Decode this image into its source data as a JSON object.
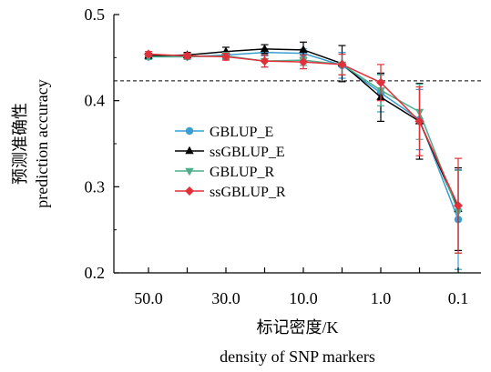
{
  "chart_data": {
    "type": "line",
    "title": "",
    "xlabel": "标记密度/K",
    "xlabel_en": "density of SNP markers",
    "ylabel": "预测准确性",
    "ylabel_en": "prediction accuracy",
    "x_categories": [
      "50.0",
      "",
      "30.0",
      "",
      "10.0",
      "",
      "1.0",
      "",
      "0.1"
    ],
    "ylim": [
      0.2,
      0.5
    ],
    "y_ticks": [
      0.2,
      0.3,
      0.4,
      0.5
    ],
    "y_tick_labels": [
      "0.2",
      "0.3",
      "0.4",
      "0.5"
    ],
    "reference_line": 0.423,
    "grid": false,
    "legend_position": "center-left",
    "series": [
      {
        "name": "GBLUP_E",
        "color": "#3a9ed0",
        "marker": "circle",
        "values": [
          0.451,
          0.451,
          0.453,
          0.456,
          0.455,
          0.441,
          0.409,
          0.378,
          0.262
        ],
        "errors": [
          0.003,
          0.003,
          0.004,
          0.004,
          0.005,
          0.015,
          0.022,
          0.035,
          0.058
        ]
      },
      {
        "name": "ssGBLUP_E",
        "color": "#000000",
        "marker": "triangle-up",
        "values": [
          0.452,
          0.453,
          0.457,
          0.46,
          0.459,
          0.443,
          0.404,
          0.376,
          0.274
        ],
        "errors": [
          0.003,
          0.003,
          0.005,
          0.005,
          0.009,
          0.021,
          0.028,
          0.044,
          0.048
        ]
      },
      {
        "name": "GBLUP_R",
        "color": "#4caf8c",
        "marker": "triangle-down",
        "values": [
          0.451,
          0.451,
          0.452,
          0.446,
          0.447,
          0.442,
          0.412,
          0.387,
          0.271
        ],
        "errors": [
          0.003,
          0.003,
          0.004,
          0.007,
          0.006,
          0.012,
          0.018,
          0.032,
          0.048
        ]
      },
      {
        "name": "ssGBLUP_R",
        "color": "#e0303a",
        "marker": "diamond",
        "values": [
          0.454,
          0.452,
          0.451,
          0.446,
          0.445,
          0.442,
          0.421,
          0.376,
          0.278
        ],
        "errors": [
          0.003,
          0.003,
          0.004,
          0.007,
          0.008,
          0.012,
          0.021,
          0.04,
          0.055
        ]
      }
    ]
  }
}
